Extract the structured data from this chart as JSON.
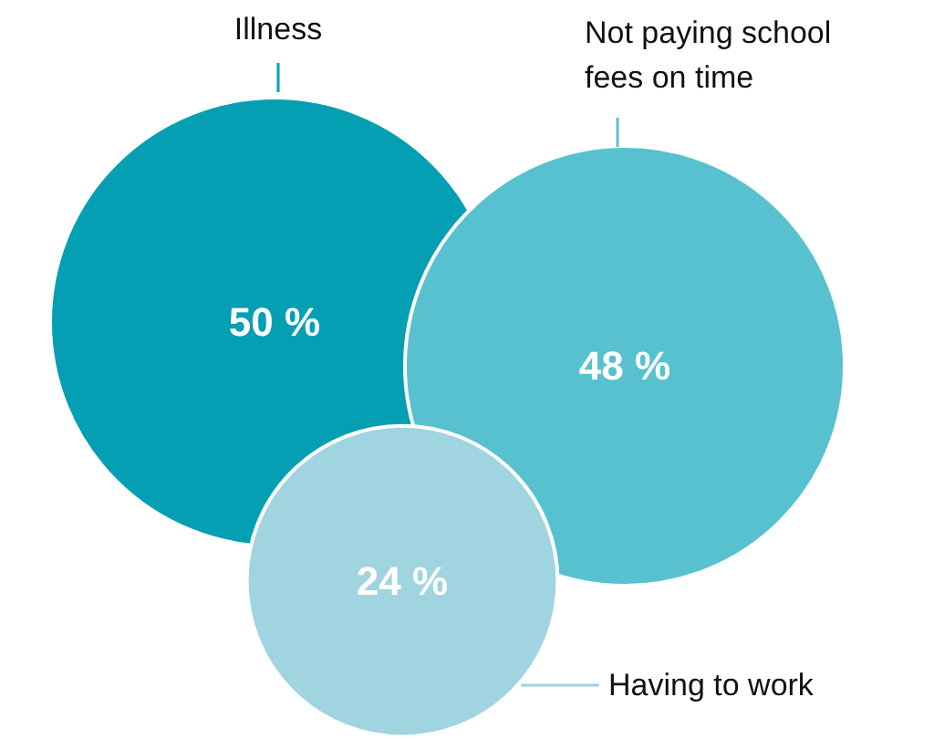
{
  "chart_data": {
    "type": "other",
    "categories": [
      "Illness",
      "Not paying school fees on time",
      "Having to work"
    ],
    "values": [
      50,
      48,
      24
    ],
    "colors": [
      "#049fb2",
      "#57c1cf",
      "#9fd4e0"
    ],
    "value_labels": [
      "50 %",
      "48 %",
      "24 %"
    ]
  }
}
